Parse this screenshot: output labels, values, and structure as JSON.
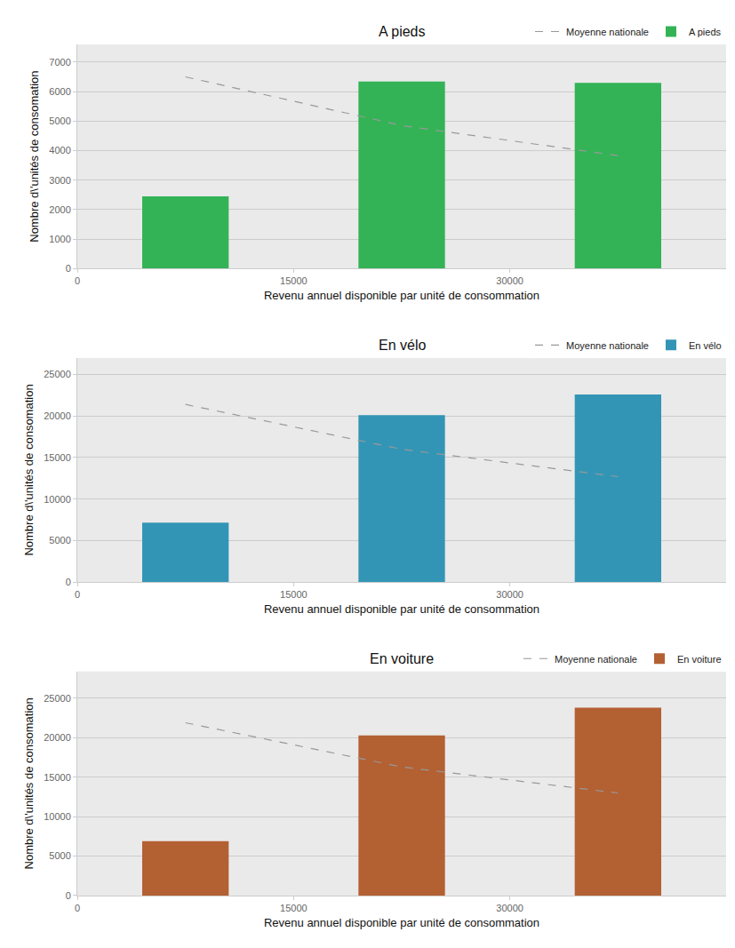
{
  "chart_data": [
    {
      "type": "bar",
      "title": "A pieds",
      "x_label": "Revenu annuel disponible par unité de consommation",
      "y_label": "Nombre d\\'unités de consomation",
      "x": [
        7500,
        22500,
        37500
      ],
      "series": [
        {
          "name": "Moyenne nationale",
          "type": "line",
          "color": "#999999",
          "line_style": "dashed",
          "values": [
            6500,
            4850,
            3830
          ]
        },
        {
          "name": "A pieds",
          "type": "bar",
          "color": "#33b356",
          "values": [
            2450,
            6340,
            6300
          ]
        }
      ],
      "xlim": [
        0,
        45000
      ],
      "xticks": [
        0,
        15000,
        30000
      ],
      "ylim": [
        0,
        7600
      ],
      "yticks": [
        0,
        1000,
        2000,
        3000,
        4000,
        5000,
        6000,
        7000
      ],
      "grid": true,
      "legend": "top right"
    },
    {
      "type": "bar",
      "title": "En vélo",
      "x_label": "Revenu annuel disponible par unité de consommation",
      "y_label": "Nombre d\\'unités de consomation",
      "x": [
        7500,
        22500,
        37500
      ],
      "series": [
        {
          "name": "Moyenne nationale",
          "type": "line",
          "color": "#999999",
          "line_style": "dashed",
          "values": [
            21400,
            16000,
            12700
          ]
        },
        {
          "name": "En vélo",
          "type": "bar",
          "color": "#3395b5",
          "values": [
            7170,
            20100,
            22600
          ]
        }
      ],
      "xlim": [
        0,
        45000
      ],
      "xticks": [
        0,
        15000,
        30000
      ],
      "ylim": [
        0,
        27000
      ],
      "yticks": [
        0,
        5000,
        10000,
        15000,
        20000,
        25000
      ],
      "grid": true,
      "legend": "top right"
    },
    {
      "type": "bar",
      "title": "En voiture",
      "x_label": "Revenu annuel disponible par unité de consommation",
      "y_label": "Nombre d\\'unités de consomation",
      "x": [
        7500,
        22500,
        37500
      ],
      "series": [
        {
          "name": "Moyenne nationale",
          "type": "line",
          "color": "#999999",
          "line_style": "dashed",
          "values": [
            21900,
            16300,
            13000
          ]
        },
        {
          "name": "En voiture",
          "type": "bar",
          "color": "#b36033",
          "values": [
            6900,
            20300,
            23800
          ]
        }
      ],
      "xlim": [
        0,
        45000
      ],
      "xticks": [
        0,
        15000,
        30000
      ],
      "ylim": [
        0,
        28400
      ],
      "yticks": [
        0,
        5000,
        10000,
        15000,
        20000,
        25000
      ],
      "grid": true,
      "legend": "top right"
    }
  ]
}
